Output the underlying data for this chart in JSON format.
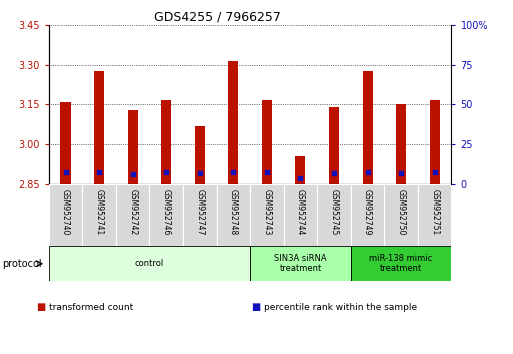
{
  "title": "GDS4255 / 7966257",
  "samples": [
    "GSM952740",
    "GSM952741",
    "GSM952742",
    "GSM952746",
    "GSM952747",
    "GSM952748",
    "GSM952743",
    "GSM952744",
    "GSM952745",
    "GSM952749",
    "GSM952750",
    "GSM952751"
  ],
  "red_values": [
    3.16,
    3.275,
    3.13,
    3.165,
    3.07,
    3.315,
    3.168,
    2.955,
    3.14,
    3.275,
    3.15,
    3.168
  ],
  "blue_values": [
    2.894,
    2.894,
    2.888,
    2.896,
    2.891,
    2.894,
    2.894,
    2.874,
    2.891,
    2.894,
    2.891,
    2.894
  ],
  "y_min": 2.85,
  "y_max": 3.45,
  "y_ticks_left": [
    2.85,
    3.0,
    3.15,
    3.3,
    3.45
  ],
  "y_ticks_right_pos": [
    2.85,
    3.0,
    3.15,
    3.3,
    3.45
  ],
  "y_right_labels": [
    "0",
    "25",
    "50",
    "75",
    "100%"
  ],
  "bar_color": "#bb1100",
  "blue_color": "#1111bb",
  "protocol_groups": [
    {
      "label": "control",
      "start": 0,
      "end": 5,
      "color": "#ddffdd"
    },
    {
      "label": "SIN3A siRNA\ntreatment",
      "start": 6,
      "end": 8,
      "color": "#aaffaa"
    },
    {
      "label": "miR-138 mimic\ntreatment",
      "start": 9,
      "end": 11,
      "color": "#33cc33"
    }
  ],
  "legend_items": [
    {
      "label": "transformed count",
      "color": "#bb1100"
    },
    {
      "label": "percentile rank within the sample",
      "color": "#1111bb"
    }
  ],
  "bar_width": 0.3,
  "protocol_label": "protocol"
}
